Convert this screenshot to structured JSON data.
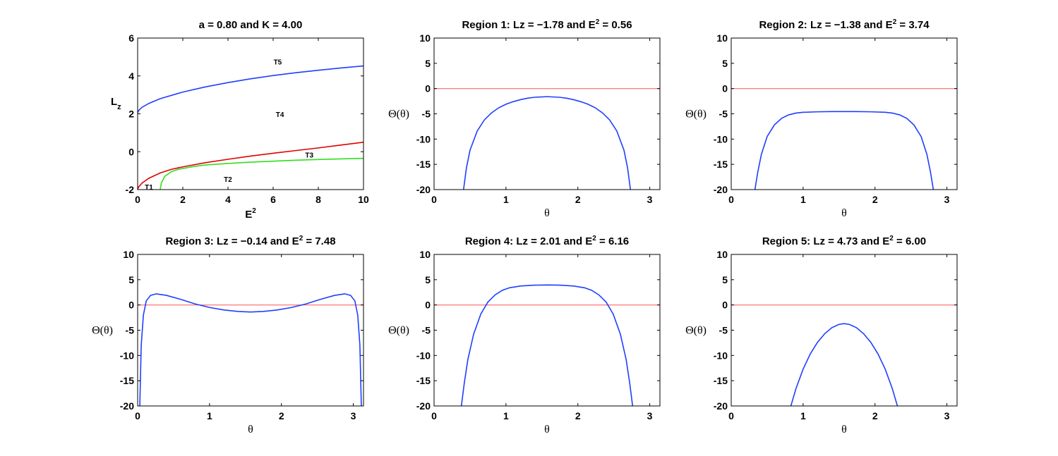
{
  "colors": {
    "blue": "#1f3fff",
    "red": "#e00000",
    "green": "#33dd22",
    "ref_line": "#ff8080",
    "axis": "#000000"
  },
  "chart_data": [
    {
      "type": "line",
      "title": "a = 0.80 and K = 4.00",
      "xlabel_base": "E",
      "xlabel_sup": "2",
      "ylabel_base": "L",
      "ylabel_sub": "z",
      "xlim": [
        0,
        10
      ],
      "ylim": [
        -2,
        6
      ],
      "xticks": [
        0,
        2,
        4,
        6,
        8,
        10
      ],
      "yticks": [
        -2,
        0,
        2,
        4,
        6
      ],
      "series": [
        {
          "color": "blue",
          "x": [
            0,
            0.05,
            0.2,
            0.5,
            1,
            2,
            3,
            4,
            5,
            6,
            7,
            8,
            9,
            10
          ],
          "y": [
            2.05,
            2.18,
            2.35,
            2.55,
            2.8,
            3.15,
            3.42,
            3.65,
            3.85,
            4.02,
            4.17,
            4.3,
            4.42,
            4.53
          ]
        },
        {
          "color": "red",
          "x": [
            0,
            0.05,
            0.2,
            0.5,
            1,
            1.5,
            2,
            3,
            4,
            5,
            6,
            7,
            8,
            9,
            10
          ],
          "y": [
            -1.97,
            -1.85,
            -1.65,
            -1.4,
            -1.12,
            -0.93,
            -0.8,
            -0.58,
            -0.4,
            -0.23,
            -0.08,
            0.06,
            0.2,
            0.35,
            0.5
          ]
        },
        {
          "color": "green",
          "x": [
            1,
            1.05,
            1.2,
            1.5,
            1.8,
            2.5,
            3,
            4,
            5,
            6,
            7,
            8,
            9,
            10
          ],
          "y": [
            -2.0,
            -1.65,
            -1.3,
            -1.05,
            -0.93,
            -0.78,
            -0.7,
            -0.62,
            -0.55,
            -0.5,
            -0.45,
            -0.41,
            -0.38,
            -0.35
          ]
        }
      ],
      "annotations": [
        {
          "text": "T5",
          "x": 6.2,
          "y": 4.75
        },
        {
          "text": "T4",
          "x": 6.3,
          "y": 1.98
        },
        {
          "text": "T3",
          "x": 7.6,
          "y": -0.15
        },
        {
          "text": "T2",
          "x": 4.0,
          "y": -1.45
        },
        {
          "text": "T1",
          "x": 0.5,
          "y": -1.85
        }
      ]
    },
    {
      "type": "line",
      "title_prefix": "Region 1: Lz = −1.78 and E",
      "title_sup": "2",
      "title_suffix": " = 0.56",
      "xlabel": "θ",
      "ylabel": "Θ(θ)",
      "xlim": [
        0,
        3.1416
      ],
      "ylim": [
        -20,
        10
      ],
      "xticks": [
        0,
        1,
        2,
        3
      ],
      "yticks": [
        -20,
        -15,
        -10,
        -5,
        0,
        5,
        10
      ],
      "reference_y": 0,
      "series": [
        {
          "color": "blue",
          "x": [
            0.41,
            0.45,
            0.5,
            0.6,
            0.7,
            0.8,
            0.9,
            1.0,
            1.1,
            1.2,
            1.3,
            1.4,
            1.5708,
            1.7416,
            1.8416,
            1.9416,
            2.0416,
            2.1416,
            2.2416,
            2.3416,
            2.4416,
            2.5416,
            2.6416,
            2.6916,
            2.7316
          ],
          "y": [
            -20,
            -15.7,
            -12.2,
            -8.4,
            -6.2,
            -4.8,
            -3.8,
            -3.1,
            -2.6,
            -2.2,
            -1.9,
            -1.72,
            -1.6,
            -1.72,
            -1.9,
            -2.2,
            -2.6,
            -3.1,
            -3.8,
            -4.8,
            -6.2,
            -8.4,
            -12.2,
            -15.7,
            -20
          ]
        }
      ]
    },
    {
      "type": "line",
      "title_prefix": "Region 2: Lz = −1.38 and E",
      "title_sup": "2",
      "title_suffix": " = 3.74",
      "xlabel": "θ",
      "ylabel": "Θ(θ)",
      "xlim": [
        0,
        3.1416
      ],
      "ylim": [
        -20,
        10
      ],
      "xticks": [
        0,
        1,
        2,
        3
      ],
      "yticks": [
        -20,
        -15,
        -10,
        -5,
        0,
        5,
        10
      ],
      "reference_y": 0,
      "series": [
        {
          "color": "blue",
          "x": [
            0.33,
            0.37,
            0.42,
            0.5,
            0.6,
            0.7,
            0.8,
            0.9,
            1.0,
            1.2,
            1.4,
            1.5708,
            1.7416,
            1.9416,
            2.1416,
            2.2416,
            2.3416,
            2.4416,
            2.5416,
            2.6416,
            2.7216,
            2.7716,
            2.8116
          ],
          "y": [
            -20,
            -16.5,
            -13,
            -9.5,
            -7.2,
            -5.9,
            -5.2,
            -4.85,
            -4.7,
            -4.6,
            -4.55,
            -4.55,
            -4.55,
            -4.6,
            -4.7,
            -4.85,
            -5.2,
            -5.9,
            -7.2,
            -9.5,
            -13,
            -16.5,
            -20
          ]
        }
      ]
    },
    {
      "type": "line",
      "title_prefix": "Region 3: Lz = −0.14 and E",
      "title_sup": "2",
      "title_suffix": " = 7.48",
      "xlabel": "θ",
      "ylabel": "Θ(θ)",
      "xlim": [
        0,
        3.1416
      ],
      "ylim": [
        -20,
        10
      ],
      "xticks": [
        0,
        1,
        2,
        3
      ],
      "yticks": [
        -20,
        -15,
        -10,
        -5,
        0,
        5,
        10
      ],
      "reference_y": 0,
      "series": [
        {
          "color": "blue",
          "x": [
            0.03,
            0.05,
            0.08,
            0.12,
            0.18,
            0.26,
            0.4,
            0.6,
            0.8,
            1.0,
            1.2,
            1.4,
            1.5708,
            1.7416,
            1.9416,
            2.1416,
            2.3416,
            2.5416,
            2.7416,
            2.8816,
            2.9616,
            3.0216,
            3.0616,
            3.0916,
            3.1116
          ],
          "y": [
            -20,
            -8,
            -2,
            0.8,
            1.9,
            2.2,
            1.9,
            1.1,
            0.2,
            -0.5,
            -1.0,
            -1.3,
            -1.4,
            -1.3,
            -1.0,
            -0.5,
            0.2,
            1.1,
            1.9,
            2.2,
            1.9,
            0.8,
            -2,
            -8,
            -20
          ]
        }
      ]
    },
    {
      "type": "line",
      "title_prefix": "Region 4: Lz = 2.01 and E",
      "title_sup": "2",
      "title_suffix": " = 6.16",
      "xlabel": "θ",
      "ylabel": "Θ(θ)",
      "xlim": [
        0,
        3.1416
      ],
      "ylim": [
        -20,
        10
      ],
      "xticks": [
        0,
        1,
        2,
        3
      ],
      "yticks": [
        -20,
        -15,
        -10,
        -5,
        0,
        5,
        10
      ],
      "reference_y": 0,
      "series": [
        {
          "color": "blue",
          "x": [
            0.38,
            0.42,
            0.47,
            0.55,
            0.65,
            0.75,
            0.85,
            0.95,
            1.05,
            1.2,
            1.4,
            1.5708,
            1.7416,
            1.9416,
            2.0916,
            2.1916,
            2.2916,
            2.3916,
            2.4916,
            2.5916,
            2.6716,
            2.7216,
            2.7616
          ],
          "y": [
            -20,
            -15.5,
            -10.8,
            -5.8,
            -1.8,
            0.6,
            2.0,
            2.9,
            3.4,
            3.75,
            3.92,
            3.95,
            3.92,
            3.75,
            3.4,
            2.9,
            2.0,
            0.6,
            -1.8,
            -5.8,
            -10.8,
            -15.5,
            -20
          ]
        }
      ]
    },
    {
      "type": "line",
      "title_prefix": "Region 5: Lz = 4.73 and E",
      "title_sup": "2",
      "title_suffix": " = 6.00",
      "xlabel": "θ",
      "ylabel": "Θ(θ)",
      "xlim": [
        0,
        3.1416
      ],
      "ylim": [
        -20,
        10
      ],
      "xticks": [
        0,
        1,
        2,
        3
      ],
      "yticks": [
        -20,
        -15,
        -10,
        -5,
        0,
        5,
        10
      ],
      "reference_y": 0,
      "series": [
        {
          "color": "blue",
          "x": [
            0.83,
            0.9,
            1.0,
            1.1,
            1.2,
            1.3,
            1.4,
            1.5,
            1.5708,
            1.6416,
            1.7416,
            1.8416,
            1.9416,
            2.0416,
            2.1416,
            2.2416,
            2.3116
          ],
          "y": [
            -20,
            -16.6,
            -12.7,
            -9.7,
            -7.4,
            -5.7,
            -4.5,
            -3.85,
            -3.7,
            -3.85,
            -4.5,
            -5.7,
            -7.4,
            -9.7,
            -12.7,
            -16.6,
            -20
          ]
        }
      ]
    }
  ]
}
